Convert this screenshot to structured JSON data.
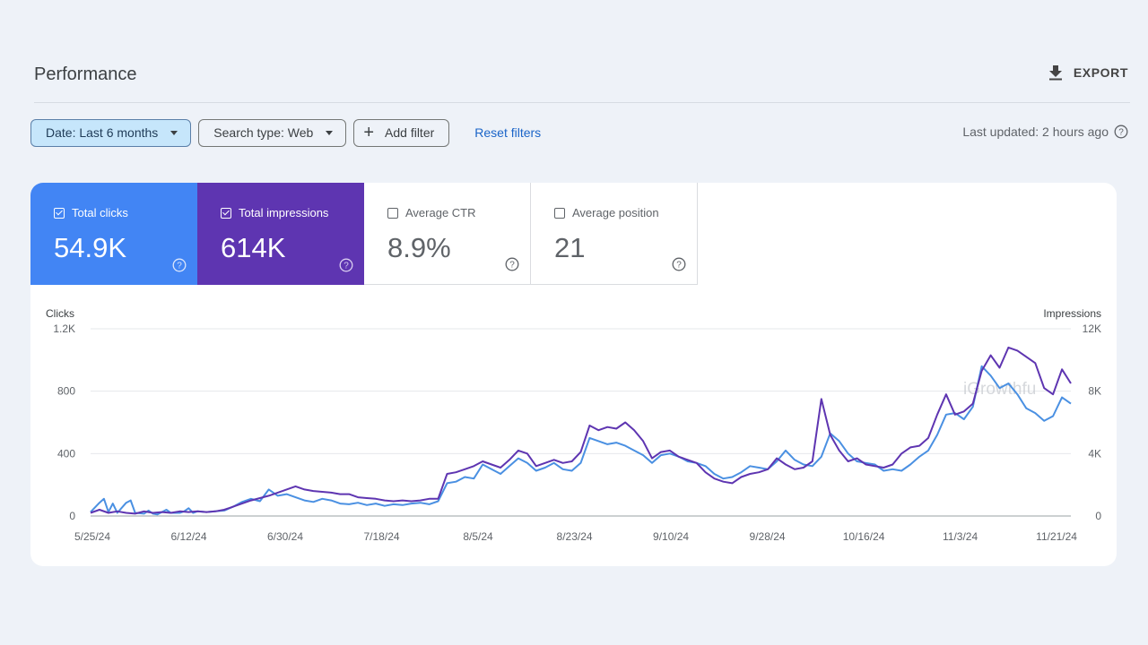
{
  "header": {
    "title": "Performance",
    "export_label": "EXPORT"
  },
  "filters": {
    "date": "Date: Last 6 months",
    "search_type": "Search type: Web",
    "add_filter": "Add filter",
    "reset": "Reset filters"
  },
  "status": {
    "last_updated": "Last updated: 2 hours ago"
  },
  "metrics": [
    {
      "label": "Total clicks",
      "value": "54.9K",
      "selected": true,
      "color": "#4285f4"
    },
    {
      "label": "Total impressions",
      "value": "614K",
      "selected": true,
      "color": "#5e35b1"
    },
    {
      "label": "Average CTR",
      "value": "8.9%",
      "selected": false
    },
    {
      "label": "Average position",
      "value": "21",
      "selected": false
    }
  ],
  "watermark": "iGrowthfu",
  "chart_data": {
    "type": "line",
    "left_axis_title": "Clicks",
    "right_axis_title": "Impressions",
    "left_ticks": [
      "0",
      "400",
      "800",
      "1.2K"
    ],
    "right_ticks": [
      "0",
      "4K",
      "8K",
      "12K"
    ],
    "ylim_left": [
      0,
      1200
    ],
    "ylim_right": [
      0,
      12000
    ],
    "x_tick_labels": [
      "5/25/24",
      "6/12/24",
      "6/30/24",
      "7/18/24",
      "8/5/24",
      "8/23/24",
      "9/10/24",
      "9/28/24",
      "10/16/24",
      "11/3/24",
      "11/21/24"
    ],
    "x_range": [
      "5/25/24",
      "11/24/24"
    ],
    "grid": true,
    "series": [
      {
        "name": "Clicks",
        "axis": "left",
        "color": "#4a90e2",
        "points": [
          [
            0,
            25
          ],
          [
            2,
            85
          ],
          [
            3,
            110
          ],
          [
            4,
            25
          ],
          [
            5,
            80
          ],
          [
            6,
            20
          ],
          [
            8,
            85
          ],
          [
            9,
            100
          ],
          [
            10,
            20
          ],
          [
            12,
            15
          ],
          [
            13,
            35
          ],
          [
            14,
            15
          ],
          [
            15,
            10
          ],
          [
            17,
            40
          ],
          [
            18,
            20
          ],
          [
            20,
            20
          ],
          [
            21,
            30
          ],
          [
            22,
            50
          ],
          [
            23,
            20
          ],
          [
            24,
            30
          ],
          [
            26,
            25
          ],
          [
            28,
            30
          ],
          [
            30,
            35
          ],
          [
            32,
            60
          ],
          [
            34,
            90
          ],
          [
            36,
            110
          ],
          [
            38,
            95
          ],
          [
            40,
            170
          ],
          [
            42,
            130
          ],
          [
            44,
            140
          ],
          [
            46,
            120
          ],
          [
            48,
            100
          ],
          [
            50,
            90
          ],
          [
            52,
            110
          ],
          [
            54,
            100
          ],
          [
            56,
            80
          ],
          [
            58,
            75
          ],
          [
            60,
            85
          ],
          [
            62,
            70
          ],
          [
            64,
            80
          ],
          [
            66,
            65
          ],
          [
            68,
            75
          ],
          [
            70,
            70
          ],
          [
            72,
            80
          ],
          [
            74,
            85
          ],
          [
            76,
            75
          ],
          [
            78,
            95
          ],
          [
            80,
            210
          ],
          [
            82,
            220
          ],
          [
            84,
            250
          ],
          [
            86,
            240
          ],
          [
            88,
            330
          ],
          [
            90,
            300
          ],
          [
            92,
            270
          ],
          [
            94,
            320
          ],
          [
            96,
            370
          ],
          [
            98,
            340
          ],
          [
            100,
            290
          ],
          [
            102,
            310
          ],
          [
            104,
            340
          ],
          [
            106,
            300
          ],
          [
            108,
            290
          ],
          [
            110,
            340
          ],
          [
            112,
            500
          ],
          [
            114,
            480
          ],
          [
            116,
            460
          ],
          [
            118,
            470
          ],
          [
            120,
            450
          ],
          [
            122,
            420
          ],
          [
            124,
            390
          ],
          [
            126,
            340
          ],
          [
            128,
            390
          ],
          [
            130,
            400
          ],
          [
            132,
            380
          ],
          [
            134,
            350
          ],
          [
            136,
            340
          ],
          [
            138,
            320
          ],
          [
            140,
            270
          ],
          [
            142,
            240
          ],
          [
            144,
            250
          ],
          [
            146,
            280
          ],
          [
            148,
            320
          ],
          [
            150,
            310
          ],
          [
            152,
            300
          ],
          [
            154,
            350
          ],
          [
            156,
            420
          ],
          [
            158,
            360
          ],
          [
            160,
            330
          ],
          [
            162,
            320
          ],
          [
            164,
            380
          ],
          [
            166,
            530
          ],
          [
            168,
            480
          ],
          [
            170,
            400
          ],
          [
            172,
            350
          ],
          [
            174,
            340
          ],
          [
            176,
            330
          ],
          [
            178,
            290
          ],
          [
            180,
            300
          ],
          [
            182,
            290
          ],
          [
            184,
            330
          ],
          [
            186,
            380
          ],
          [
            188,
            420
          ],
          [
            190,
            520
          ],
          [
            192,
            650
          ],
          [
            194,
            660
          ],
          [
            196,
            620
          ],
          [
            198,
            700
          ],
          [
            200,
            960
          ],
          [
            202,
            900
          ],
          [
            204,
            820
          ],
          [
            206,
            850
          ],
          [
            208,
            780
          ],
          [
            210,
            690
          ],
          [
            212,
            660
          ],
          [
            214,
            610
          ],
          [
            216,
            640
          ],
          [
            218,
            760
          ],
          [
            220,
            720
          ]
        ]
      },
      {
        "name": "Impressions",
        "axis": "right",
        "color": "#5e35b1",
        "points": [
          [
            0,
            200
          ],
          [
            2,
            400
          ],
          [
            4,
            200
          ],
          [
            6,
            300
          ],
          [
            8,
            200
          ],
          [
            10,
            150
          ],
          [
            12,
            300
          ],
          [
            14,
            200
          ],
          [
            16,
            250
          ],
          [
            18,
            200
          ],
          [
            20,
            300
          ],
          [
            22,
            250
          ],
          [
            24,
            300
          ],
          [
            26,
            250
          ],
          [
            28,
            300
          ],
          [
            30,
            400
          ],
          [
            32,
            600
          ],
          [
            34,
            800
          ],
          [
            36,
            1000
          ],
          [
            38,
            1150
          ],
          [
            40,
            1300
          ],
          [
            42,
            1500
          ],
          [
            44,
            1700
          ],
          [
            46,
            1900
          ],
          [
            48,
            1700
          ],
          [
            50,
            1600
          ],
          [
            52,
            1550
          ],
          [
            54,
            1500
          ],
          [
            56,
            1400
          ],
          [
            58,
            1400
          ],
          [
            60,
            1200
          ],
          [
            62,
            1150
          ],
          [
            64,
            1100
          ],
          [
            66,
            1000
          ],
          [
            68,
            950
          ],
          [
            70,
            1000
          ],
          [
            72,
            950
          ],
          [
            74,
            1000
          ],
          [
            76,
            1100
          ],
          [
            78,
            1100
          ],
          [
            80,
            2700
          ],
          [
            82,
            2800
          ],
          [
            84,
            3000
          ],
          [
            86,
            3200
          ],
          [
            88,
            3500
          ],
          [
            90,
            3300
          ],
          [
            92,
            3100
          ],
          [
            94,
            3600
          ],
          [
            96,
            4200
          ],
          [
            98,
            4000
          ],
          [
            100,
            3200
          ],
          [
            102,
            3400
          ],
          [
            104,
            3600
          ],
          [
            106,
            3400
          ],
          [
            108,
            3500
          ],
          [
            110,
            4100
          ],
          [
            112,
            5800
          ],
          [
            114,
            5500
          ],
          [
            116,
            5700
          ],
          [
            118,
            5600
          ],
          [
            120,
            6000
          ],
          [
            122,
            5500
          ],
          [
            124,
            4800
          ],
          [
            126,
            3700
          ],
          [
            128,
            4100
          ],
          [
            130,
            4200
          ],
          [
            132,
            3800
          ],
          [
            134,
            3600
          ],
          [
            136,
            3400
          ],
          [
            138,
            2800
          ],
          [
            140,
            2400
          ],
          [
            142,
            2200
          ],
          [
            144,
            2100
          ],
          [
            146,
            2500
          ],
          [
            148,
            2700
          ],
          [
            150,
            2800
          ],
          [
            152,
            3000
          ],
          [
            154,
            3700
          ],
          [
            156,
            3300
          ],
          [
            158,
            3000
          ],
          [
            160,
            3100
          ],
          [
            162,
            3500
          ],
          [
            164,
            7500
          ],
          [
            166,
            5200
          ],
          [
            168,
            4200
          ],
          [
            170,
            3500
          ],
          [
            172,
            3700
          ],
          [
            174,
            3300
          ],
          [
            176,
            3200
          ],
          [
            178,
            3100
          ],
          [
            180,
            3300
          ],
          [
            182,
            4000
          ],
          [
            184,
            4400
          ],
          [
            186,
            4500
          ],
          [
            188,
            5000
          ],
          [
            190,
            6500
          ],
          [
            192,
            7800
          ],
          [
            194,
            6500
          ],
          [
            196,
            6700
          ],
          [
            198,
            7200
          ],
          [
            200,
            9300
          ],
          [
            202,
            10300
          ],
          [
            204,
            9500
          ],
          [
            206,
            10800
          ],
          [
            208,
            10600
          ],
          [
            210,
            10200
          ],
          [
            212,
            9800
          ],
          [
            214,
            8200
          ],
          [
            216,
            7800
          ],
          [
            218,
            9400
          ],
          [
            220,
            8500
          ]
        ]
      }
    ]
  }
}
